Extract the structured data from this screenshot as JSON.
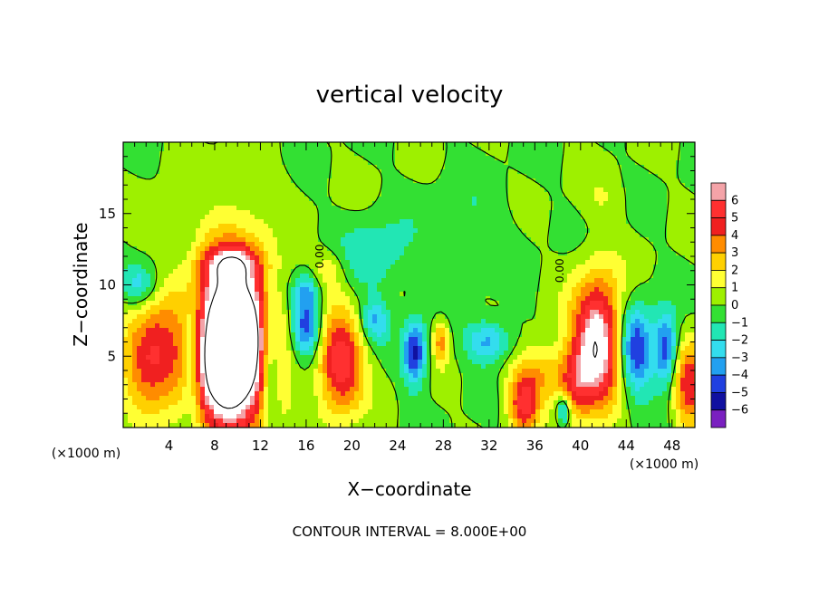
{
  "chart_data": {
    "type": "heatmap",
    "title": "vertical velocity",
    "xlabel": "X−coordinate",
    "ylabel": "Z−coordinate",
    "x_unit_left": "(×1000 m)",
    "x_unit_right": "(×1000 m)",
    "xlim": [
      0,
      50
    ],
    "ylim": [
      0,
      20
    ],
    "x_ticks": [
      4,
      8,
      12,
      16,
      20,
      24,
      28,
      32,
      36,
      40,
      44,
      48
    ],
    "y_ticks": [
      5,
      10,
      15
    ],
    "colorbar": {
      "levels": [
        6,
        5,
        4,
        3,
        2,
        1,
        0,
        -1,
        -2,
        -3,
        -4,
        -5,
        -6
      ],
      "colors": [
        "#f4a3a8",
        "#ff3030",
        "#f02020",
        "#ff8c00",
        "#ffd000",
        "#ffff33",
        "#9ef000",
        "#33e033",
        "#22e6b4",
        "#33ddee",
        "#22a0f0",
        "#2040e0",
        "#1010a0",
        "#7a20c0"
      ]
    },
    "contour_labels": [
      {
        "text": "0.00",
        "x": 17.5,
        "y": 12
      },
      {
        "text": "0.00",
        "x": 38.5,
        "y": 11
      }
    ],
    "annotation": "CONTOUR INTERVAL = 8.000E+00",
    "features": [
      {
        "x": 2.5,
        "z": 5.0,
        "w": 5.5,
        "sign": 1,
        "rx": 2.5,
        "rz": 3.6
      },
      {
        "x": 9.5,
        "z": 5.8,
        "w": 14.0,
        "sign": 1,
        "rx": 3.4,
        "rz": 6.0
      },
      {
        "x": 19.0,
        "z": 4.5,
        "w": 6.0,
        "sign": 1,
        "rx": 2.0,
        "rz": 3.5
      },
      {
        "x": 41.5,
        "z": 6.0,
        "w": 8.0,
        "sign": 1,
        "rx": 2.2,
        "rz": 4.5
      },
      {
        "x": 49.5,
        "z": 3.0,
        "w": 5.0,
        "sign": 1,
        "rx": 1.4,
        "rz": 3.0
      },
      {
        "x": 27.8,
        "z": 6.0,
        "w": 3.5,
        "sign": 1,
        "rx": 0.7,
        "rz": 1.5
      },
      {
        "x": 35.0,
        "z": 1.5,
        "w": 5.0,
        "sign": 1,
        "rx": 1.3,
        "rz": 2.0
      },
      {
        "x": 36.5,
        "z": 3.8,
        "w": 3.0,
        "sign": 1,
        "rx": 2.5,
        "rz": 2.0
      },
      {
        "x": 39.5,
        "z": 3.0,
        "w": 3.0,
        "sign": 1,
        "rx": 1.4,
        "rz": 2.5
      },
      {
        "x": 25.5,
        "z": 5.2,
        "w": 5.5,
        "sign": -1,
        "rx": 1.0,
        "rz": 2.2
      },
      {
        "x": 32.0,
        "z": 6.0,
        "w": 3.5,
        "sign": -1,
        "rx": 2.0,
        "rz": 1.5
      },
      {
        "x": 6.0,
        "z": 5.0,
        "w": 4.0,
        "sign": -1,
        "rx": 0.9,
        "rz": 4.0
      },
      {
        "x": 12.8,
        "z": 5.0,
        "w": 4.5,
        "sign": -1,
        "rx": 0.9,
        "rz": 4.0
      },
      {
        "x": 16.0,
        "z": 7.0,
        "w": 5.0,
        "sign": -1,
        "rx": 1.3,
        "rz": 2.0
      },
      {
        "x": 44.8,
        "z": 5.5,
        "w": 5.5,
        "sign": -1,
        "rx": 1.5,
        "rz": 3.0
      },
      {
        "x": 47.5,
        "z": 5.5,
        "w": 5.0,
        "sign": -1,
        "rx": 1.0,
        "rz": 2.5
      },
      {
        "x": 1.5,
        "z": 10.0,
        "w": 3.0,
        "sign": -1,
        "rx": 1.5,
        "rz": 1.5
      },
      {
        "x": 22.0,
        "z": 7.5,
        "w": 3.0,
        "sign": -1,
        "rx": 1.2,
        "rz": 1.5
      },
      {
        "x": 38.5,
        "z": 1.2,
        "w": 4.0,
        "sign": -1,
        "rx": 0.6,
        "rz": 1.0
      },
      {
        "x": 9.5,
        "z": 11.5,
        "w": 3.0,
        "sign": 1,
        "rx": 2.5,
        "rz": 1.2
      },
      {
        "x": 18.0,
        "z": 11.0,
        "w": 1.8,
        "sign": 1,
        "rx": 1.5,
        "rz": 1.5
      },
      {
        "x": 22.0,
        "z": 12.0,
        "w": 2.0,
        "sign": -1,
        "rx": 3.0,
        "rz": 2.5
      },
      {
        "x": 16.0,
        "z": 9.5,
        "w": 3.0,
        "sign": -1,
        "rx": 1.2,
        "rz": 1.3
      },
      {
        "x": 11.0,
        "z": 17.0,
        "w": 0.8,
        "sign": 1,
        "rx": 3.0,
        "rz": 2.0
      },
      {
        "x": 42.0,
        "z": 16.0,
        "w": 0.8,
        "sign": 1,
        "rx": 2.0,
        "rz": 1.5
      },
      {
        "x": 30.0,
        "z": 14.0,
        "w": 1.0,
        "sign": -1,
        "rx": 4.0,
        "rz": 3.0
      },
      {
        "x": 3.0,
        "z": 14.5,
        "w": 0.7,
        "sign": 1,
        "rx": 2.0,
        "rz": 2.0
      }
    ]
  }
}
